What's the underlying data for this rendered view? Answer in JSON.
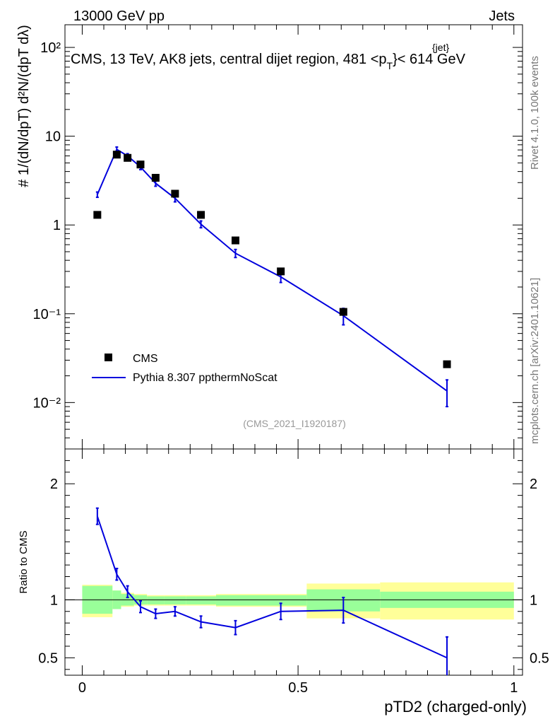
{
  "header": {
    "energy_label": "13000 GeV pp",
    "category_label": "Jets",
    "side_label": "Rivet 4.1.0,  100k events",
    "side_label2": "mcplots.cern.ch [arXiv:2401.10621]",
    "analysis_id": "(CMS_2021_I1920187)"
  },
  "chart_data": {
    "type": "scatter",
    "title": "CMS, 13 TeV, AK8 jets, central dijet region, 481 <p",
    "title_sup": "{jet}",
    "title_sub": "T",
    "title_end": "}< 614 GeV",
    "ylabel_main": "# 1/(dN/dpT) d²N/(dpT dλ)",
    "ylabel_ratio": "Ratio to CMS",
    "xlabel": "pTD2 (charged-only)",
    "xlim": [
      -0.04,
      1.02
    ],
    "ylim_main": [
      0.003,
      180
    ],
    "ylim_ratio": [
      0.35,
      2.3
    ],
    "x_ticks": [
      0,
      0.5,
      1
    ],
    "x_tick_labels": [
      "0",
      "0.5",
      "1"
    ],
    "y_ticks_main_labels": [
      "10⁻²",
      "10⁻¹",
      "1",
      "10",
      "10²"
    ],
    "y_ticks_ratio": [
      0.5,
      1,
      2
    ],
    "y_tick_labels_ratio": [
      "0.5",
      "1",
      "2"
    ],
    "legend": {
      "data_label": "CMS",
      "mc_label": "Pythia 8.307 ppthermNoScat"
    },
    "colors": {
      "data": "#000000",
      "mc": "#0000dd",
      "band_inner": "#99ff99",
      "band_outer": "#ffff99"
    },
    "bin_edges": [
      0.0,
      0.07,
      0.09,
      0.12,
      0.15,
      0.19,
      0.24,
      0.31,
      0.52,
      0.69,
      1.0
    ],
    "x": [
      0.035,
      0.08,
      0.105,
      0.135,
      0.17,
      0.215,
      0.275,
      0.355,
      0.46,
      0.605,
      0.845
    ],
    "data_values": [
      1.3,
      6.2,
      5.7,
      4.8,
      3.4,
      2.25,
      1.3,
      0.67,
      0.3,
      0.105,
      0.027
    ],
    "mc_values": [
      2.2,
      7.1,
      6.0,
      4.5,
      2.95,
      2.0,
      1.02,
      0.48,
      0.26,
      0.095,
      0.0135
    ],
    "mc_err_up": [
      0.15,
      0.45,
      0.35,
      0.3,
      0.22,
      0.18,
      0.09,
      0.05,
      0.035,
      0.02,
      0.0045
    ],
    "mc_err_down": [
      0.15,
      0.45,
      0.35,
      0.3,
      0.22,
      0.18,
      0.09,
      0.05,
      0.035,
      0.02,
      0.0045
    ],
    "ratio_values": [
      1.72,
      1.22,
      1.07,
      0.94,
      0.88,
      0.9,
      0.81,
      0.76,
      0.9,
      0.91,
      0.5
    ],
    "ratio_err": [
      0.07,
      0.05,
      0.05,
      0.05,
      0.04,
      0.04,
      0.05,
      0.06,
      0.07,
      0.11,
      0.18
    ],
    "band_inner": [
      [
        0.88,
        1.12
      ],
      [
        0.92,
        1.08
      ],
      [
        0.95,
        1.05
      ],
      [
        0.96,
        1.04
      ],
      [
        0.96,
        1.03
      ],
      [
        0.96,
        1.03
      ],
      [
        0.96,
        1.03
      ],
      [
        0.95,
        1.04
      ],
      [
        0.9,
        1.09
      ],
      [
        0.93,
        1.07
      ],
      [
        0.94,
        1.06
      ]
    ],
    "band_outer": [
      [
        0.85,
        1.13
      ],
      [
        0.92,
        1.08
      ],
      [
        0.94,
        1.06
      ],
      [
        0.95,
        1.05
      ],
      [
        0.95,
        1.04
      ],
      [
        0.95,
        1.04
      ],
      [
        0.95,
        1.04
      ],
      [
        0.94,
        1.05
      ],
      [
        0.84,
        1.14
      ],
      [
        0.83,
        1.15
      ],
      [
        0.89,
        1.1
      ]
    ]
  }
}
